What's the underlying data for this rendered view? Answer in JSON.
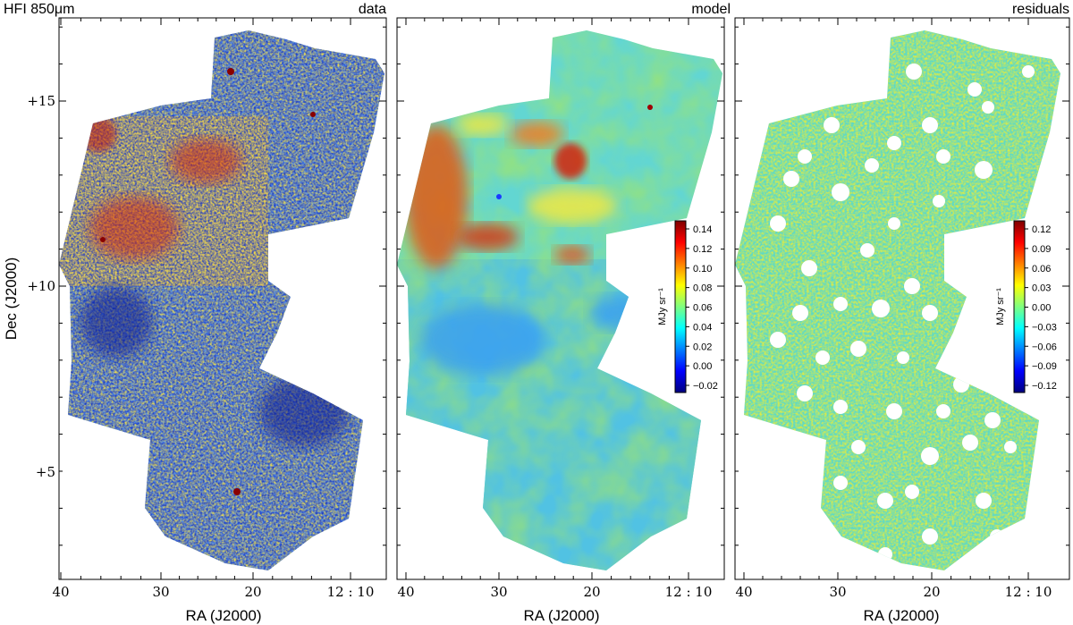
{
  "figure_title": "HFI 850μm",
  "chart_data": [
    {
      "type": "heatmap",
      "panel_title": "data",
      "xlabel": "RA (J2000)",
      "ylabel": "Dec (J2000)",
      "x_ticks": [
        "40",
        "30",
        "20",
        "12 : 10"
      ],
      "y_ticks": [
        "+15",
        "+10",
        "+5"
      ],
      "colormap": "jet"
    },
    {
      "type": "heatmap",
      "panel_title": "model",
      "xlabel": "RA (J2000)",
      "x_ticks": [
        "40",
        "30",
        "20",
        "12 : 10"
      ],
      "colormap": "jet",
      "colorbar": {
        "label": "MJy sr⁻¹",
        "ticks": [
          "0.14",
          "0.12",
          "0.10",
          "0.08",
          "0.06",
          "0.04",
          "0.02",
          "0.00",
          "−0.02"
        ]
      }
    },
    {
      "type": "heatmap",
      "panel_title": "residuals",
      "xlabel": "RA (J2000)",
      "x_ticks": [
        "40",
        "30",
        "20",
        "12 : 10"
      ],
      "colormap": "jet",
      "colorbar": {
        "label": "MJy sr⁻¹",
        "ticks": [
          "0.12",
          "0.09",
          "0.06",
          "0.03",
          "0.00",
          "−0.03",
          "−0.06",
          "−0.09",
          "−0.12"
        ]
      }
    }
  ]
}
